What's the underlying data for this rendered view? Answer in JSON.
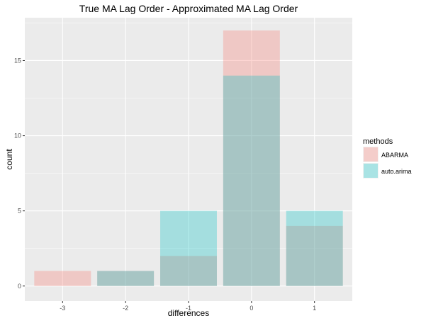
{
  "chart_data": {
    "type": "bar",
    "title": "True MA Lag Order - Approximated MA Lag Order",
    "xlabel": "differences",
    "ylabel": "count",
    "categories": [
      "-3",
      "-2",
      "-1",
      "0",
      "1"
    ],
    "yticks": [
      0,
      5,
      10,
      15
    ],
    "ylim": [
      0,
      17.85
    ],
    "grid": true,
    "legend_position": "right",
    "legend_title": "methods",
    "bar_opacity": 0.3,
    "series": [
      {
        "name": "ABARMA",
        "color": "#F8766D",
        "values": [
          1,
          1,
          2,
          17,
          4
        ]
      },
      {
        "name": "auto.arima",
        "color": "#00BFC4",
        "values": [
          0,
          1,
          5,
          14,
          5
        ]
      }
    ]
  }
}
